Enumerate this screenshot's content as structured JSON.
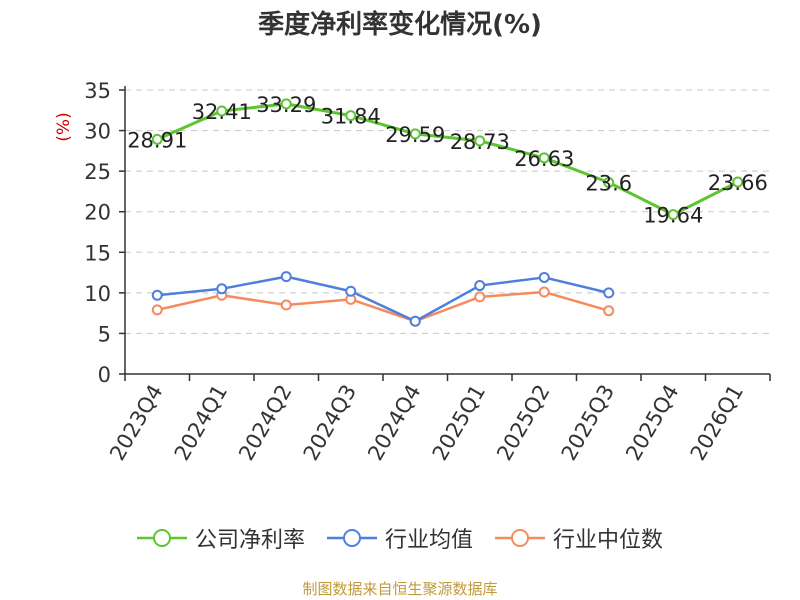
{
  "title": "季度净利率变化情况(%)",
  "source_note": "制图数据来自恒生聚源数据库",
  "colors": {
    "company": "#5ec431",
    "industry_avg": "#4f7fdc",
    "industry_median": "#f58a5c",
    "source": "#c29a3a",
    "ylabel": "#cc0000"
  },
  "chart_data": {
    "type": "line",
    "title": "季度净利率变化情况(%)",
    "ylabel": "(%)",
    "xlabel": "",
    "ylim": [
      0,
      35
    ],
    "yticks": [
      0,
      5,
      10,
      15,
      20,
      25,
      30,
      35
    ],
    "grid": true,
    "legend_position": "bottom",
    "categories": [
      "2023Q4",
      "2024Q1",
      "2024Q2",
      "2024Q3",
      "2024Q4",
      "2025Q1",
      "2025Q2",
      "2025Q3",
      "2025Q4",
      "2026Q1"
    ],
    "series": [
      {
        "name": "公司净利率",
        "color_key": "company",
        "values": [
          28.91,
          32.41,
          33.29,
          31.84,
          29.59,
          28.73,
          26.63,
          23.6,
          19.64,
          23.66
        ],
        "labels": [
          "28.91",
          "32.41",
          "33.29",
          "31.84",
          "29.59",
          "28.73",
          "26.63",
          "23.6",
          "19.64",
          "23.66"
        ]
      },
      {
        "name": "行业均值",
        "color_key": "industry_avg",
        "values": [
          9.7,
          10.5,
          12.0,
          10.2,
          6.5,
          10.9,
          11.9,
          10.0,
          null,
          null
        ]
      },
      {
        "name": "行业中位数",
        "color_key": "industry_median",
        "values": [
          7.9,
          9.7,
          8.5,
          9.2,
          6.5,
          9.5,
          10.1,
          7.8,
          null,
          null
        ]
      }
    ]
  }
}
